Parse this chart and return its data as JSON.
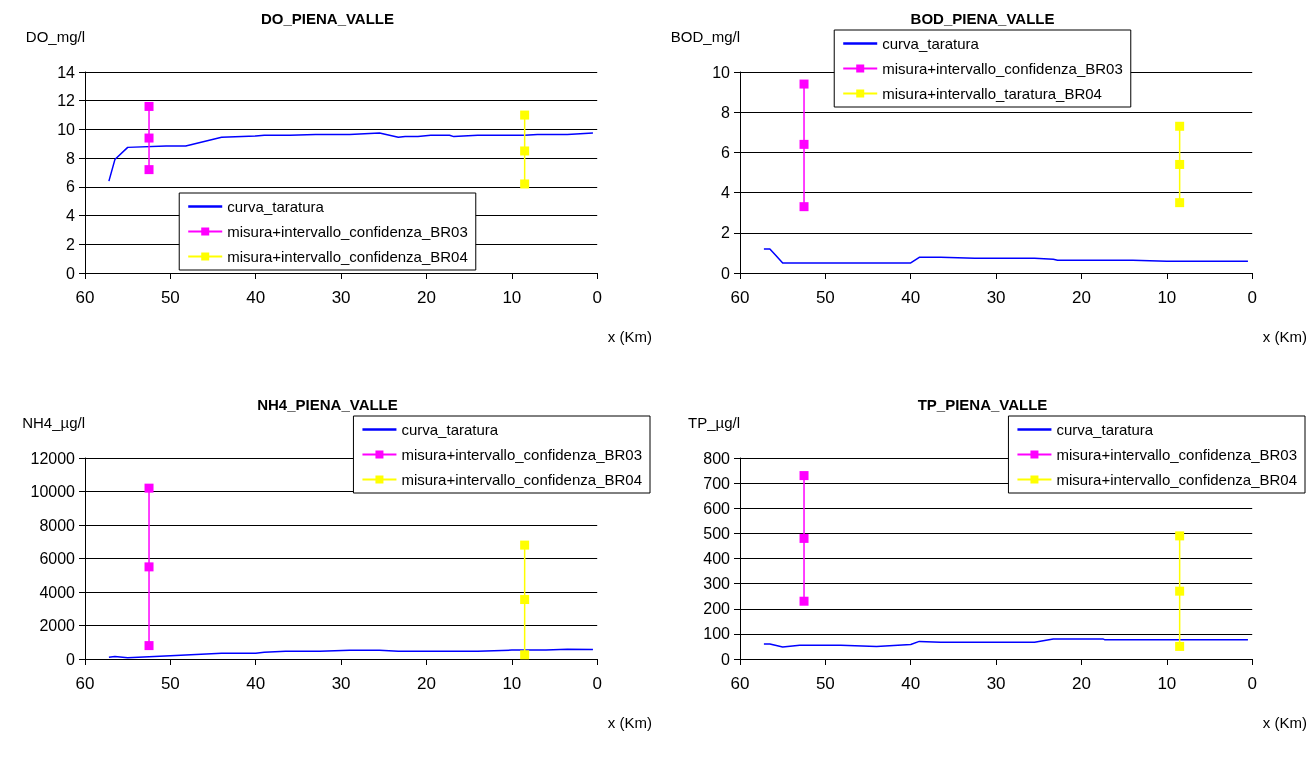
{
  "chart_data": [
    {
      "type": "line",
      "title": "DO_PIENA_VALLE",
      "ylabel": "DO_mg/l",
      "xlabel": "x (Km)",
      "xlim": [
        60,
        0
      ],
      "xticks": [
        60,
        50,
        40,
        30,
        20,
        10,
        0
      ],
      "ylim": [
        0,
        14
      ],
      "yticks": [
        0,
        2,
        4,
        6,
        8,
        10,
        12,
        14
      ],
      "grid": "y",
      "legend": "bottom",
      "series": [
        {
          "name": "curva_taratura",
          "color": "#0000ff",
          "marker": "none",
          "x": [
            57.2,
            56.5,
            55,
            50.5,
            48.2,
            44,
            40,
            39,
            36,
            33,
            29,
            25.5,
            23.3,
            22.5,
            21,
            19.5,
            17.3,
            16.8,
            14,
            8.5,
            7,
            3.5,
            0.5
          ],
          "values": [
            6.4,
            7.9,
            8.75,
            8.85,
            8.85,
            9.45,
            9.55,
            9.6,
            9.6,
            9.65,
            9.65,
            9.75,
            9.45,
            9.5,
            9.5,
            9.6,
            9.6,
            9.5,
            9.6,
            9.6,
            9.65,
            9.65,
            9.75
          ]
        },
        {
          "name": "misura+intervallo_confidenza_BR03",
          "color": "#ff00ff",
          "marker": "square",
          "x": [
            52.5,
            52.5,
            52.5
          ],
          "values": [
            7.2,
            9.4,
            11.6
          ]
        },
        {
          "name": "misura+intervallo_confidenza_BR04",
          "color": "#ffff00",
          "marker": "square",
          "x": [
            8.5,
            8.5,
            8.5
          ],
          "values": [
            6.2,
            8.5,
            11.0
          ]
        }
      ]
    },
    {
      "type": "line",
      "title": "BOD_PIENA_VALLE",
      "ylabel": "BOD_mg/l",
      "xlabel": "x (Km)",
      "xlim": [
        60,
        0
      ],
      "xticks": [
        60,
        50,
        40,
        30,
        20,
        10,
        0
      ],
      "ylim": [
        0,
        10
      ],
      "yticks": [
        0,
        2,
        4,
        6,
        8,
        10
      ],
      "grid": "y",
      "legend": "top",
      "series": [
        {
          "name": "curva_taratura",
          "color": "#0000ff",
          "marker": "none",
          "x": [
            57.2,
            56.5,
            55,
            40,
            39,
            36.5,
            32.5,
            25.5,
            23.3,
            22.8,
            14,
            10,
            0.5
          ],
          "values": [
            1.2,
            1.2,
            0.5,
            0.5,
            0.78,
            0.78,
            0.73,
            0.73,
            0.68,
            0.63,
            0.63,
            0.58,
            0.58
          ]
        },
        {
          "name": "misura+intervallo_confidenza_BR03",
          "color": "#ff00ff",
          "marker": "square",
          "x": [
            52.5,
            52.5,
            52.5
          ],
          "values": [
            3.3,
            6.4,
            9.4
          ]
        },
        {
          "name": "misura+intervallo_taratura_BR04",
          "color": "#ffff00",
          "marker": "square",
          "x": [
            8.5,
            8.5,
            8.5
          ],
          "values": [
            3.5,
            5.4,
            7.3
          ]
        }
      ]
    },
    {
      "type": "line",
      "title": "NH4_PIENA_VALLE",
      "ylabel": "NH4_µg/l",
      "xlabel": "x (Km)",
      "xlim": [
        60,
        0
      ],
      "xticks": [
        60,
        50,
        40,
        30,
        20,
        10,
        0
      ],
      "ylim": [
        0,
        12000
      ],
      "yticks": [
        0,
        2000,
        4000,
        6000,
        8000,
        10000,
        12000
      ],
      "grid": "y",
      "legend": "top right",
      "series": [
        {
          "name": "curva_taratura",
          "color": "#0000ff",
          "marker": "none",
          "x": [
            57.2,
            56.5,
            55,
            50,
            44,
            40,
            39,
            36.5,
            32.5,
            29,
            25.5,
            23.3,
            14,
            10,
            6,
            3.5,
            0.5
          ],
          "values": [
            100,
            150,
            80,
            200,
            350,
            350,
            400,
            470,
            470,
            520,
            520,
            470,
            470,
            530,
            530,
            580,
            570
          ]
        },
        {
          "name": "misura+intervallo_confidenza_BR03",
          "color": "#ff00ff",
          "marker": "square",
          "x": [
            52.5,
            52.5,
            52.5
          ],
          "values": [
            800,
            5500,
            10200
          ]
        },
        {
          "name": "misura+intervallo_confidenza_BR04",
          "color": "#ffff00",
          "marker": "square",
          "x": [
            8.5,
            8.5,
            8.5
          ],
          "values": [
            250,
            3550,
            6800
          ]
        }
      ]
    },
    {
      "type": "line",
      "title": "TP_PIENA_VALLE",
      "ylabel": "TP_µg/l",
      "xlabel": "x (Km)",
      "xlim": [
        60,
        0
      ],
      "xticks": [
        60,
        50,
        40,
        30,
        20,
        10,
        0
      ],
      "ylim": [
        0,
        800
      ],
      "yticks": [
        0,
        100,
        200,
        300,
        400,
        500,
        600,
        700,
        800
      ],
      "grid": "y",
      "legend": "top right",
      "series": [
        {
          "name": "curva_taratura",
          "color": "#0000ff",
          "marker": "none",
          "x": [
            57.2,
            56.5,
            55,
            53,
            48.2,
            44,
            40,
            39,
            36.5,
            25.5,
            23.3,
            17.5,
            17.3,
            0.5
          ],
          "values": [
            60,
            60,
            48,
            55,
            55,
            50,
            58,
            70,
            67,
            67,
            80,
            80,
            77,
            77
          ]
        },
        {
          "name": "misura+intervallo_confidenza_BR03",
          "color": "#ff00ff",
          "marker": "square",
          "x": [
            52.5,
            52.5,
            52.5
          ],
          "values": [
            230,
            480,
            730
          ]
        },
        {
          "name": "misura+intervallo_confidenza_BR04",
          "color": "#ffff00",
          "marker": "square",
          "x": [
            8.5,
            8.5,
            8.5
          ],
          "values": [
            50,
            270,
            490
          ]
        }
      ]
    }
  ]
}
